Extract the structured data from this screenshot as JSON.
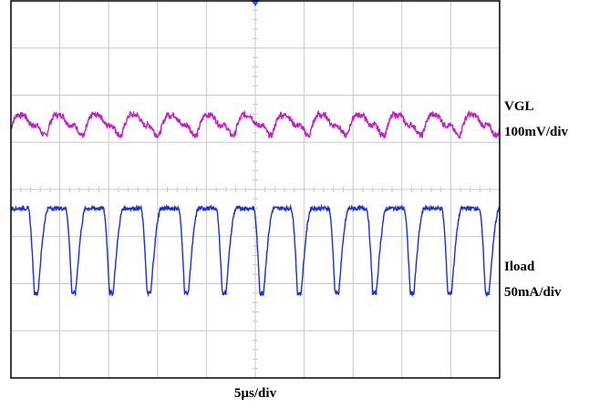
{
  "chart_data": {
    "type": "line",
    "title": "",
    "grid": true,
    "time_scale": "5µs/div",
    "divisions": {
      "x": 10,
      "y": 8
    },
    "series": [
      {
        "name": "VGL",
        "scale_label": "100mV/div",
        "color": "#c020c0",
        "waveform": "ripple",
        "cycles": 13,
        "offset_div": 2.3,
        "peak_to_peak_div": 1.1
      },
      {
        "name": "Iload",
        "scale_label": "50mA/div",
        "color": "#1a2fd6",
        "waveform": "pulse",
        "cycles": 13,
        "high_level_div": 2.2,
        "low_level_div": 0.4
      }
    ]
  },
  "colors": {
    "grid": "#c8c8c8",
    "border": "#000000",
    "trigger_marker": "#3060e0"
  }
}
